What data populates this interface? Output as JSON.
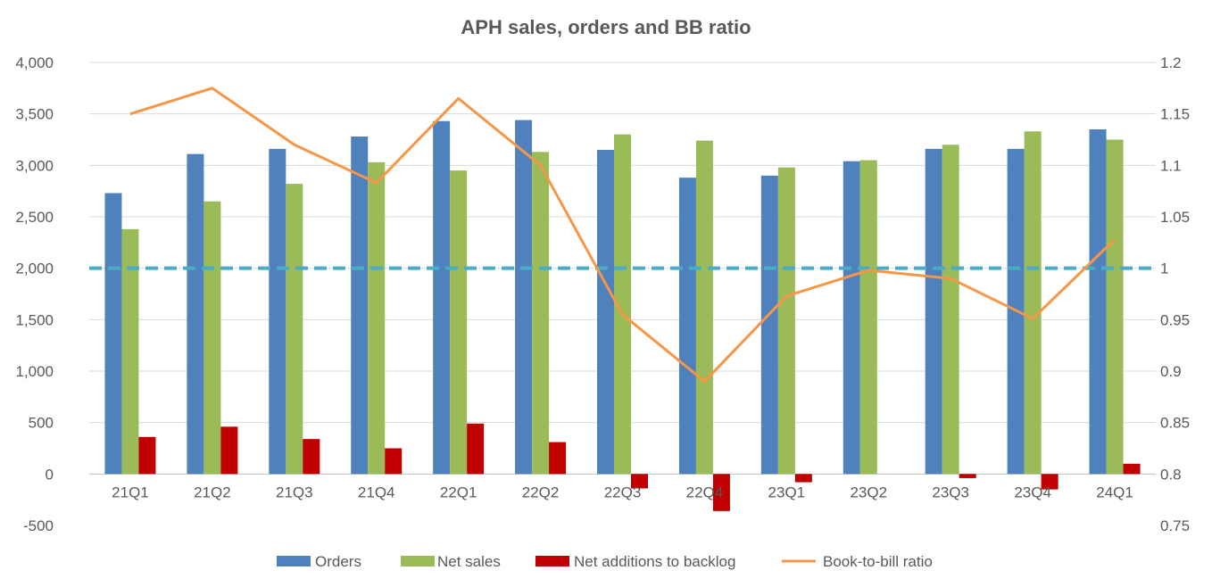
{
  "chart_data": {
    "type": "bar",
    "title": "APH sales, orders and BB ratio",
    "categories": [
      "21Q1",
      "21Q2",
      "21Q3",
      "21Q4",
      "22Q1",
      "22Q2",
      "22Q3",
      "22Q4",
      "23Q1",
      "23Q2",
      "23Q3",
      "23Q4",
      "24Q1"
    ],
    "series": [
      {
        "name": "Orders",
        "kind": "bar",
        "axis": "left",
        "color": "#4F81BD",
        "values": [
          2730,
          3110,
          3160,
          3280,
          3430,
          3440,
          3150,
          2880,
          2900,
          3040,
          3160,
          3160,
          3350
        ]
      },
      {
        "name": "Net sales",
        "kind": "bar",
        "axis": "left",
        "color": "#9BBB59",
        "values": [
          2380,
          2650,
          2820,
          3030,
          2950,
          3130,
          3300,
          3240,
          2980,
          3050,
          3200,
          3330,
          3250
        ]
      },
      {
        "name": "Net additions to backlog",
        "kind": "bar",
        "axis": "left",
        "color": "#C00000",
        "values": [
          360,
          460,
          340,
          250,
          490,
          310,
          -140,
          -360,
          -80,
          0,
          -40,
          -150,
          100
        ]
      },
      {
        "name": "Book-to-bill ratio",
        "kind": "line",
        "axis": "right",
        "color": "#F79646",
        "values": [
          1.15,
          1.175,
          1.12,
          1.083,
          1.165,
          1.1,
          0.955,
          0.89,
          0.973,
          0.998,
          0.99,
          0.951,
          1.028
        ]
      }
    ],
    "reference_line": {
      "axis": "right",
      "value": 1.0,
      "color": "#4BACC6",
      "style": "dashed"
    },
    "y_left": {
      "min": -500,
      "max": 4000,
      "ticks": [
        {
          "value": 4000,
          "label": "4,000"
        },
        {
          "value": 3500,
          "label": "3,500"
        },
        {
          "value": 3000,
          "label": "3,000"
        },
        {
          "value": 2500,
          "label": "2,500"
        },
        {
          "value": 2000,
          "label": "2,000"
        },
        {
          "value": 1500,
          "label": "1,500"
        },
        {
          "value": 1000,
          "label": "1,000"
        },
        {
          "value": 500,
          "label": "500"
        },
        {
          "value": 0,
          "label": "0"
        },
        {
          "value": -500,
          "label": "-500",
          "color": "#FF0000"
        }
      ]
    },
    "y_right": {
      "min": 0.75,
      "max": 1.2,
      "ticks": [
        {
          "value": 1.2,
          "label": "1.2"
        },
        {
          "value": 1.15,
          "label": "1.15"
        },
        {
          "value": 1.1,
          "label": "1.1"
        },
        {
          "value": 1.05,
          "label": "1.05"
        },
        {
          "value": 1.0,
          "label": "1"
        },
        {
          "value": 0.95,
          "label": "0.95"
        },
        {
          "value": 0.9,
          "label": "0.9"
        },
        {
          "value": 0.85,
          "label": "0.85"
        },
        {
          "value": 0.8,
          "label": "0.8"
        },
        {
          "value": 0.75,
          "label": "0.75"
        }
      ]
    },
    "grid": true,
    "legend": "bottom"
  }
}
